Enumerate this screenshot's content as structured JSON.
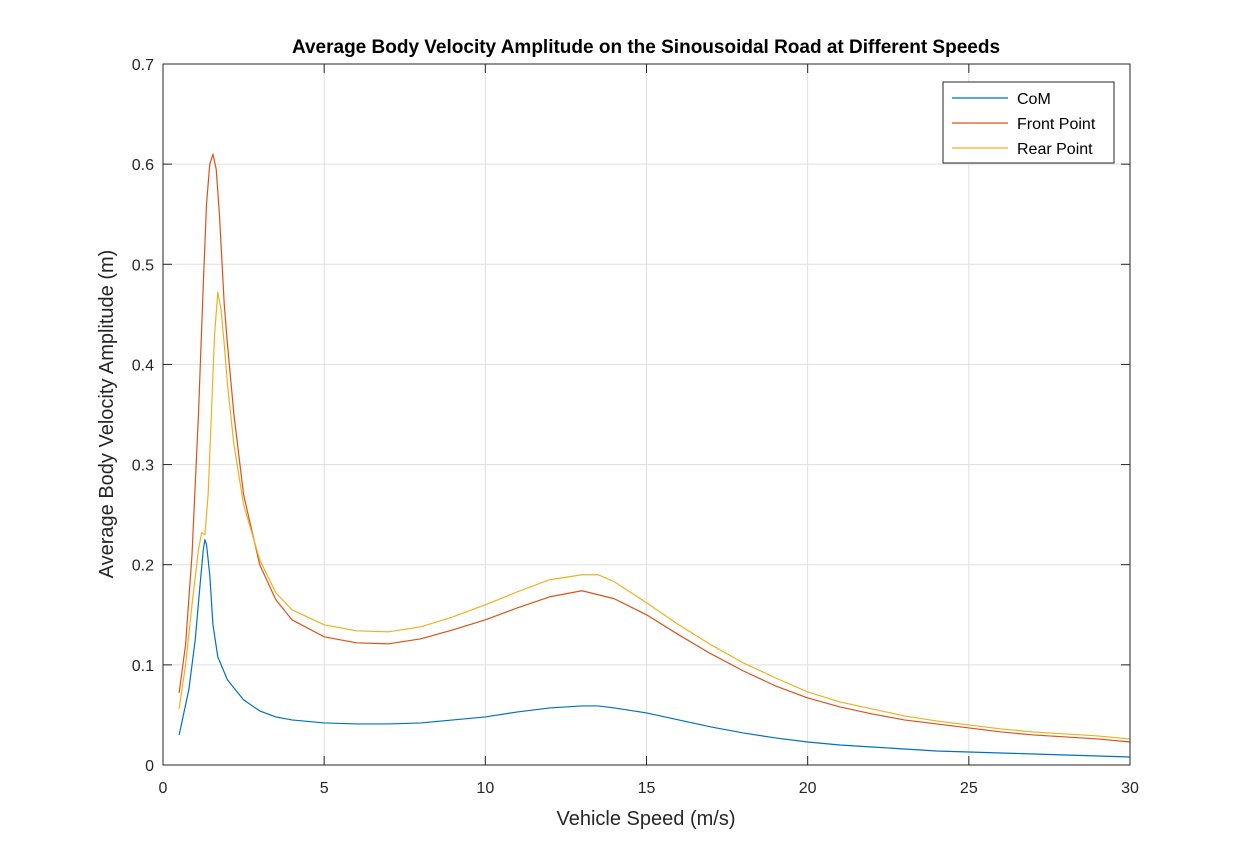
{
  "chart_data": {
    "type": "line",
    "title": "Average Body Velocity Amplitude on the Sinousoidal Road at Different Speeds",
    "xlabel": "Vehicle Speed (m/s)",
    "ylabel": "Average Body Velocity Amplitude (m)",
    "xlim": [
      0,
      30
    ],
    "ylim": [
      0,
      0.7
    ],
    "xticks": [
      0,
      5,
      10,
      15,
      20,
      25,
      30
    ],
    "xtick_labels": [
      "0",
      "5",
      "10",
      "15",
      "20",
      "25",
      "30"
    ],
    "yticks": [
      0,
      0.1,
      0.2,
      0.3,
      0.4,
      0.5,
      0.6,
      0.7
    ],
    "ytick_labels": [
      "0",
      "0.1",
      "0.2",
      "0.3",
      "0.4",
      "0.5",
      "0.6",
      "0.7"
    ],
    "grid": true,
    "legend_position": "top-right",
    "series": [
      {
        "name": "CoM",
        "color": "#0072BD",
        "x": [
          0.5,
          0.8,
          1.0,
          1.15,
          1.25,
          1.3,
          1.35,
          1.45,
          1.55,
          1.7,
          2.0,
          2.5,
          3.0,
          3.5,
          4.0,
          5.0,
          6.0,
          7.0,
          8.0,
          9.0,
          10.0,
          11.0,
          12.0,
          13.0,
          13.5,
          14.0,
          15.0,
          16.0,
          17.0,
          18.0,
          19.0,
          20.0,
          21.0,
          22.0,
          23.0,
          24.0,
          25.0,
          26.0,
          27.0,
          28.0,
          29.0,
          30.0
        ],
        "y": [
          0.03,
          0.075,
          0.125,
          0.18,
          0.215,
          0.225,
          0.22,
          0.19,
          0.14,
          0.108,
          0.085,
          0.065,
          0.054,
          0.048,
          0.045,
          0.042,
          0.041,
          0.041,
          0.042,
          0.045,
          0.048,
          0.053,
          0.057,
          0.059,
          0.059,
          0.057,
          0.052,
          0.045,
          0.038,
          0.032,
          0.027,
          0.023,
          0.02,
          0.018,
          0.016,
          0.014,
          0.013,
          0.012,
          0.011,
          0.01,
          0.009,
          0.008
        ]
      },
      {
        "name": "Front Point",
        "color": "#D95319",
        "x": [
          0.5,
          0.7,
          0.9,
          1.1,
          1.25,
          1.35,
          1.45,
          1.55,
          1.65,
          1.75,
          1.9,
          2.0,
          2.2,
          2.5,
          3.0,
          3.5,
          4.0,
          5.0,
          6.0,
          7.0,
          8.0,
          9.0,
          10.0,
          11.0,
          12.0,
          13.0,
          14.0,
          15.0,
          16.0,
          17.0,
          18.0,
          19.0,
          20.0,
          21.0,
          22.0,
          23.0,
          24.0,
          25.0,
          26.0,
          27.0,
          28.0,
          29.0,
          30.0
        ],
        "y": [
          0.072,
          0.12,
          0.21,
          0.35,
          0.48,
          0.56,
          0.6,
          0.61,
          0.595,
          0.55,
          0.46,
          0.42,
          0.35,
          0.27,
          0.2,
          0.165,
          0.145,
          0.128,
          0.122,
          0.121,
          0.126,
          0.135,
          0.145,
          0.157,
          0.168,
          0.174,
          0.166,
          0.15,
          0.13,
          0.111,
          0.094,
          0.079,
          0.067,
          0.058,
          0.051,
          0.045,
          0.041,
          0.037,
          0.033,
          0.03,
          0.028,
          0.026,
          0.023
        ]
      },
      {
        "name": "Rear Point",
        "color": "#EDB120",
        "x": [
          0.5,
          0.7,
          0.9,
          1.1,
          1.2,
          1.3,
          1.4,
          1.5,
          1.6,
          1.7,
          1.8,
          1.9,
          2.0,
          2.2,
          2.5,
          3.0,
          3.5,
          4.0,
          5.0,
          6.0,
          7.0,
          8.0,
          9.0,
          10.0,
          11.0,
          12.0,
          13.0,
          13.5,
          14.0,
          15.0,
          16.0,
          17.0,
          18.0,
          19.0,
          20.0,
          21.0,
          22.0,
          23.0,
          24.0,
          25.0,
          26.0,
          27.0,
          28.0,
          29.0,
          30.0
        ],
        "y": [
          0.056,
          0.1,
          0.16,
          0.215,
          0.232,
          0.23,
          0.27,
          0.35,
          0.43,
          0.472,
          0.455,
          0.42,
          0.38,
          0.32,
          0.26,
          0.205,
          0.172,
          0.155,
          0.14,
          0.134,
          0.133,
          0.138,
          0.148,
          0.16,
          0.173,
          0.185,
          0.19,
          0.19,
          0.183,
          0.162,
          0.14,
          0.12,
          0.102,
          0.087,
          0.073,
          0.063,
          0.056,
          0.049,
          0.044,
          0.04,
          0.036,
          0.033,
          0.031,
          0.029,
          0.026
        ]
      }
    ]
  }
}
